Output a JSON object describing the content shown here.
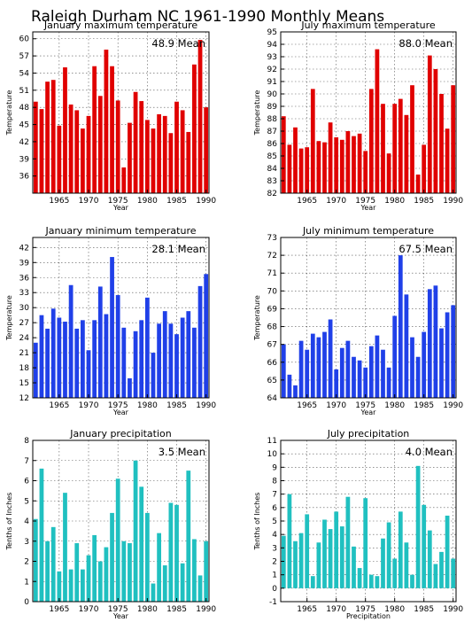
{
  "title": "Raleigh Durham NC  1961-1990 Monthly Means",
  "chart_data": [
    {
      "type": "bar",
      "title": "January maximum temperature",
      "mean_label": "48.9  Mean",
      "xlabel": "Year",
      "ylabel": "Temperature",
      "color": "#e00000",
      "ylim": [
        33,
        61.2
      ],
      "yticks": [
        36,
        39,
        42,
        45,
        48,
        51,
        54,
        57,
        60
      ],
      "xticks": [
        1965,
        1970,
        1975,
        1980,
        1985,
        1990
      ],
      "x": [
        1961,
        1962,
        1963,
        1964,
        1965,
        1966,
        1967,
        1968,
        1969,
        1970,
        1971,
        1972,
        1973,
        1974,
        1975,
        1976,
        1977,
        1978,
        1979,
        1980,
        1981,
        1982,
        1983,
        1984,
        1985,
        1986,
        1987,
        1988,
        1989,
        1990
      ],
      "values": [
        49.0,
        47.7,
        52.5,
        52.8,
        44.8,
        55.0,
        48.5,
        47.5,
        44.3,
        46.5,
        55.2,
        50.0,
        58.1,
        55.2,
        49.2,
        37.5,
        45.3,
        50.7,
        49.1,
        45.8,
        44.3,
        46.8,
        46.5,
        43.5,
        49.0,
        47.5,
        43.7,
        55.5,
        59.8,
        48.0
      ]
    },
    {
      "type": "bar",
      "title": "July maximum temperature",
      "mean_label": "88.0  Mean",
      "xlabel": "Year",
      "ylabel": "Temperature",
      "color": "#e00000",
      "ylim": [
        82,
        95
      ],
      "yticks": [
        82,
        83,
        84,
        85,
        86,
        87,
        88,
        89,
        90,
        91,
        92,
        93,
        94,
        95
      ],
      "xticks": [
        1965,
        1970,
        1975,
        1980,
        1985,
        1990
      ],
      "x": [
        1961,
        1962,
        1963,
        1964,
        1965,
        1966,
        1967,
        1968,
        1969,
        1970,
        1971,
        1972,
        1973,
        1974,
        1975,
        1976,
        1977,
        1978,
        1979,
        1980,
        1981,
        1982,
        1983,
        1984,
        1985,
        1986,
        1987,
        1988,
        1989,
        1990
      ],
      "values": [
        88.2,
        85.9,
        87.3,
        85.6,
        85.7,
        90.4,
        86.2,
        86.1,
        87.7,
        86.5,
        86.3,
        87.0,
        86.6,
        86.8,
        85.4,
        90.4,
        93.6,
        89.2,
        85.2,
        89.2,
        89.6,
        88.3,
        90.7,
        83.5,
        85.9,
        93.1,
        92.0,
        90.0,
        87.2,
        90.7
      ]
    },
    {
      "type": "bar",
      "title": "January minimum temperature",
      "mean_label": "28.1  Mean",
      "xlabel": "Year",
      "ylabel": "Temperature",
      "color": "#2040e8",
      "ylim": [
        12,
        44
      ],
      "yticks": [
        12,
        15,
        18,
        21,
        24,
        27,
        30,
        33,
        36,
        39,
        42
      ],
      "xticks": [
        1965,
        1970,
        1975,
        1980,
        1985,
        1990
      ],
      "x": [
        1961,
        1962,
        1963,
        1964,
        1965,
        1966,
        1967,
        1968,
        1969,
        1970,
        1971,
        1972,
        1973,
        1974,
        1975,
        1976,
        1977,
        1978,
        1979,
        1980,
        1981,
        1982,
        1983,
        1984,
        1985,
        1986,
        1987,
        1988,
        1989,
        1990
      ],
      "values": [
        23.0,
        28.5,
        25.8,
        29.8,
        28.0,
        27.2,
        34.5,
        25.8,
        27.5,
        21.5,
        27.5,
        34.2,
        28.7,
        40.1,
        32.5,
        26.0,
        15.9,
        25.3,
        27.5,
        32.0,
        21.0,
        26.8,
        29.3,
        26.8,
        24.7,
        28.0,
        29.3,
        26.0,
        34.3,
        36.7
      ]
    },
    {
      "type": "bar",
      "title": "July minimum temperature",
      "mean_label": "67.5  Mean",
      "xlabel": "Year",
      "ylabel": "Temperature",
      "color": "#2040e8",
      "ylim": [
        64,
        73
      ],
      "yticks": [
        64,
        65,
        66,
        67,
        68,
        69,
        70,
        71,
        72,
        73
      ],
      "xticks": [
        1965,
        1970,
        1975,
        1980,
        1985,
        1990
      ],
      "x": [
        1961,
        1962,
        1963,
        1964,
        1965,
        1966,
        1967,
        1968,
        1969,
        1970,
        1971,
        1972,
        1973,
        1974,
        1975,
        1976,
        1977,
        1978,
        1979,
        1980,
        1981,
        1982,
        1983,
        1984,
        1985,
        1986,
        1987,
        1988,
        1989,
        1990
      ],
      "values": [
        67.0,
        65.3,
        64.7,
        67.2,
        66.7,
        67.6,
        67.4,
        67.7,
        68.4,
        65.6,
        66.8,
        67.2,
        66.3,
        66.1,
        65.7,
        66.9,
        67.5,
        66.7,
        65.7,
        68.6,
        72.0,
        69.8,
        67.4,
        66.3,
        67.7,
        70.1,
        70.3,
        67.9,
        68.8,
        69.2
      ]
    },
    {
      "type": "bar",
      "title": "January precipitation",
      "mean_label": "3.5  Mean",
      "xlabel": "Year",
      "ylabel": "Tenths of Inches",
      "color": "#20c0c0",
      "ylim": [
        0,
        8
      ],
      "yticks": [
        0,
        1,
        2,
        3,
        4,
        5,
        6,
        7,
        8
      ],
      "xticks": [
        1965,
        1970,
        1975,
        1980,
        1985,
        1990
      ],
      "x": [
        1961,
        1962,
        1963,
        1964,
        1965,
        1966,
        1967,
        1968,
        1969,
        1970,
        1971,
        1972,
        1973,
        1974,
        1975,
        1976,
        1977,
        1978,
        1979,
        1980,
        1981,
        1982,
        1983,
        1984,
        1985,
        1986,
        1987,
        1988,
        1989,
        1990
      ],
      "values": [
        4.1,
        6.6,
        3.0,
        3.7,
        1.5,
        5.4,
        1.6,
        2.9,
        1.6,
        2.3,
        3.3,
        2.0,
        2.7,
        4.4,
        6.1,
        3.0,
        2.9,
        7.0,
        5.7,
        4.4,
        0.9,
        3.4,
        1.8,
        4.9,
        4.8,
        1.9,
        6.5,
        3.1,
        1.3,
        3.0
      ]
    },
    {
      "type": "bar",
      "title": "July precipitation",
      "mean_label": "4.0  Mean",
      "xlabel": "Precipitation",
      "ylabel": "Tenths of Inches",
      "color": "#20c0c0",
      "ylim": [
        -1,
        11
      ],
      "yticks": [
        -1,
        0,
        1,
        2,
        3,
        4,
        5,
        6,
        7,
        8,
        9,
        10,
        11
      ],
      "xticks": [
        1965,
        1970,
        1975,
        1980,
        1985,
        1990
      ],
      "x": [
        1961,
        1962,
        1963,
        1964,
        1965,
        1966,
        1967,
        1968,
        1969,
        1970,
        1971,
        1972,
        1973,
        1974,
        1975,
        1976,
        1977,
        1978,
        1979,
        1980,
        1981,
        1982,
        1983,
        1984,
        1985,
        1986,
        1987,
        1988,
        1989,
        1990
      ],
      "values": [
        3.9,
        7.0,
        3.5,
        4.1,
        5.5,
        0.9,
        3.4,
        5.1,
        4.4,
        5.7,
        4.6,
        6.8,
        3.1,
        1.5,
        6.7,
        1.0,
        0.9,
        3.7,
        4.9,
        2.2,
        5.7,
        3.4,
        1.0,
        9.1,
        6.2,
        4.3,
        1.8,
        2.7,
        5.4,
        2.2
      ]
    }
  ]
}
